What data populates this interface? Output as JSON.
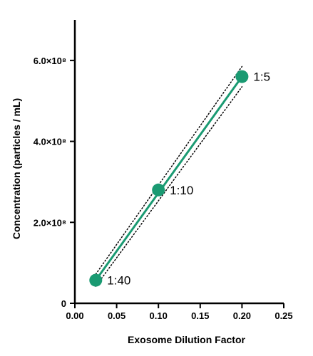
{
  "chart_data": {
    "type": "scatter",
    "title": "",
    "xlabel": "Exosome Dilution Factor",
    "ylabel": "Concentration (particles / mL)",
    "xlim": [
      0.0,
      0.25
    ],
    "ylim": [
      0,
      700000000
    ],
    "x_ticks": [
      0.0,
      0.05,
      0.1,
      0.15,
      0.2,
      0.25
    ],
    "x_tick_labels": [
      "0.00",
      "0.05",
      "0.10",
      "0.15",
      "0.20",
      "0.25"
    ],
    "y_ticks": [
      0,
      200000000,
      400000000,
      600000000
    ],
    "y_tick_labels": [
      "0",
      "2.0×10⁸",
      "4.0×10⁸",
      "6.0×10⁸"
    ],
    "grid": false,
    "legend": "none",
    "series": [
      {
        "x": [
          0.025,
          0.1,
          0.2
        ],
        "y": [
          57000000,
          280000000,
          560000000
        ],
        "point_labels": [
          "1:40",
          "1:10",
          "1:5"
        ],
        "color": "#1a9a72"
      }
    ],
    "fit_line": {
      "x": [
        0.025,
        0.2
      ],
      "y": [
        57000000,
        560000000
      ],
      "color": "#1a9a72"
    },
    "confidence_band": {
      "x": [
        0.025,
        0.2
      ],
      "upper": [
        72000000,
        585000000
      ],
      "lower": [
        42000000,
        535000000
      ],
      "color": "#000000",
      "style": "dotted"
    }
  }
}
